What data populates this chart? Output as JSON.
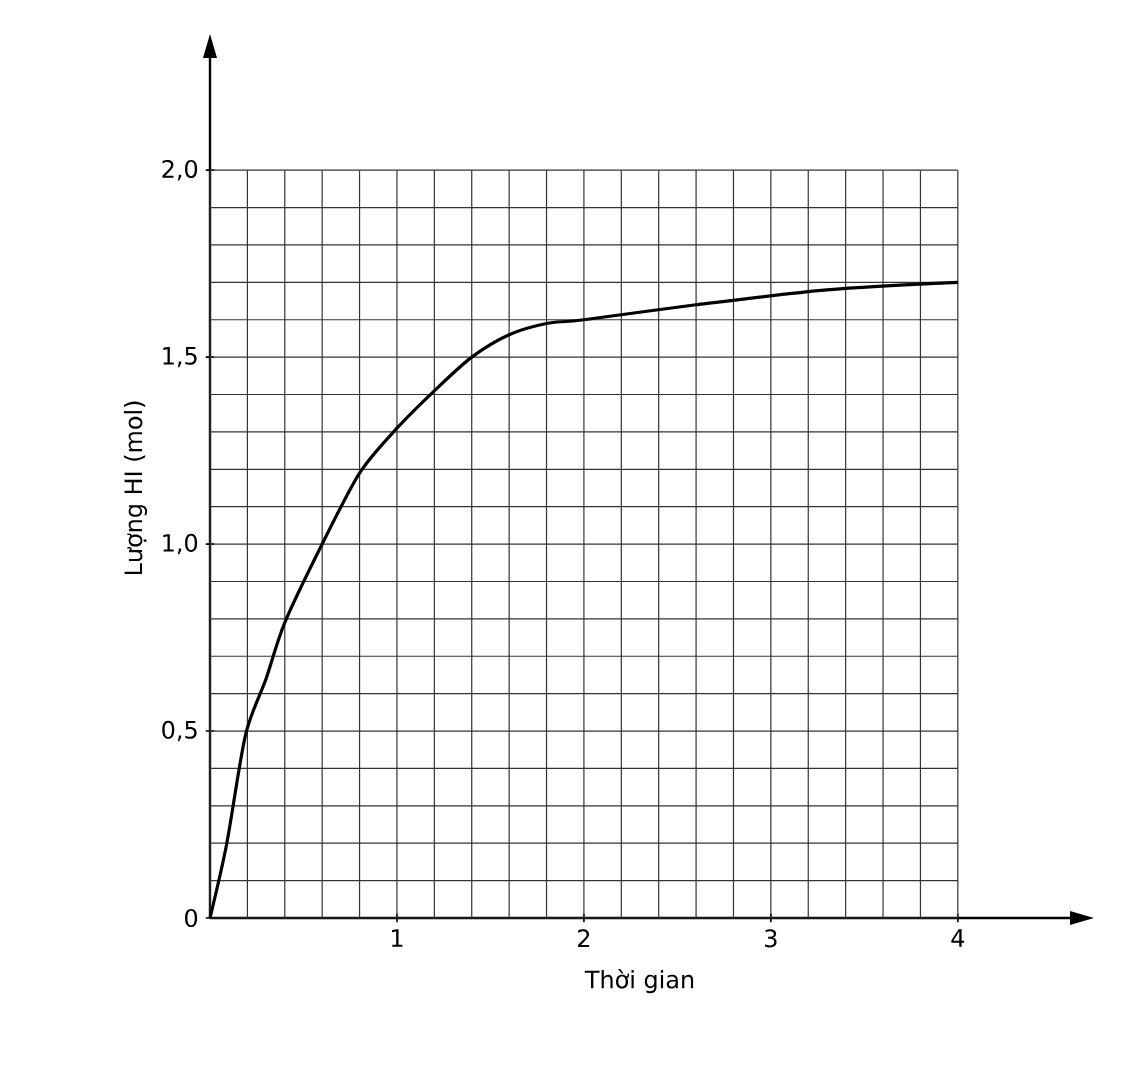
{
  "chart_data": {
    "type": "line",
    "xlabel": "Thời gian",
    "ylabel": "Lượng HI (mol)",
    "x": [
      0,
      0.09,
      0.19,
      0.3,
      0.4,
      0.6,
      0.8,
      1.0,
      1.2,
      1.4,
      1.6,
      1.8,
      2.0,
      2.6,
      3.3,
      4.0
    ],
    "series": [
      {
        "color": "#000000",
        "values": [
          0,
          0.2,
          0.49,
          0.64,
          0.79,
          1.0,
          1.19,
          1.31,
          1.41,
          1.5,
          1.56,
          1.59,
          1.6,
          1.64,
          1.68,
          1.7
        ]
      }
    ],
    "xlim": [
      0,
      4.6
    ],
    "ylim": [
      0,
      2.3
    ],
    "xticks": [
      1,
      2,
      3,
      4
    ],
    "yticks": [
      0,
      {
        "value": 0.5,
        "label": "0,5"
      },
      {
        "value": 1.0,
        "label": "1,0"
      },
      {
        "value": 1.5,
        "label": "1,5"
      },
      {
        "value": 2.0,
        "label": "2,0"
      }
    ],
    "grid": true,
    "marker": "none",
    "line_style": "solid"
  }
}
